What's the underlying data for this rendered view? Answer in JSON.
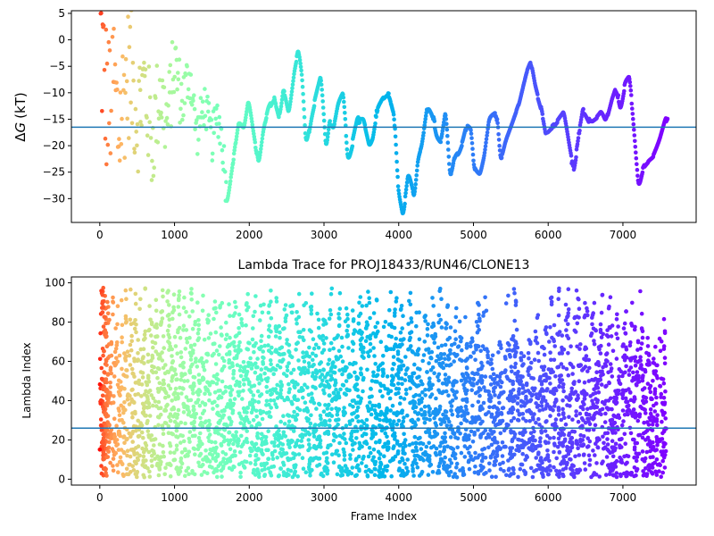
{
  "chart_data": [
    {
      "type": "scatter",
      "title": "",
      "xlabel": "",
      "ylabel": "ΔG (kT)",
      "ylabel_math_symbol": "Δ",
      "ylabel_math_var": "G",
      "ylabel_unit": "(kT)",
      "xlim": [
        -380,
        7980
      ],
      "ylim": [
        -34.5,
        5.5
      ],
      "xticks": [
        0,
        1000,
        2000,
        3000,
        4000,
        5000,
        6000,
        7000
      ],
      "yticks": [
        5,
        0,
        -5,
        -10,
        -15,
        -20,
        -25,
        -30
      ],
      "hline": -16.5,
      "hline_color": "#1f77b4",
      "colormap": "rainbow (frame index: red at start → violet at end)",
      "frame_count": 7600,
      "series_trace": [
        [
          0,
          2
        ],
        [
          60,
          -8
        ],
        [
          120,
          -14
        ],
        [
          180,
          -6
        ],
        [
          250,
          -18
        ],
        [
          320,
          -10
        ],
        [
          400,
          -5
        ],
        [
          500,
          -14
        ],
        [
          600,
          -8
        ],
        [
          700,
          -20
        ],
        [
          800,
          -9
        ],
        [
          900,
          -16
        ],
        [
          1000,
          -4
        ],
        [
          1100,
          -12
        ],
        [
          1200,
          -6
        ],
        [
          1300,
          -18
        ],
        [
          1400,
          -12
        ],
        [
          1500,
          -19
        ],
        [
          1580,
          -14
        ],
        [
          1650,
          -20
        ],
        [
          1700,
          -30
        ],
        [
          1780,
          -22
        ],
        [
          1850,
          -15
        ],
        [
          1920,
          -17
        ],
        [
          1980,
          -11
        ],
        [
          2050,
          -18
        ],
        [
          2120,
          -24
        ],
        [
          2180,
          -17
        ],
        [
          2250,
          -13
        ],
        [
          2330,
          -11
        ],
        [
          2400,
          -15
        ],
        [
          2450,
          -9
        ],
        [
          2520,
          -14
        ],
        [
          2600,
          -5
        ],
        [
          2650,
          -2
        ],
        [
          2700,
          -8
        ],
        [
          2750,
          -21
        ],
        [
          2830,
          -14
        ],
        [
          2880,
          -11
        ],
        [
          2950,
          -7
        ],
        [
          3020,
          -22
        ],
        [
          3070,
          -15
        ],
        [
          3120,
          -17
        ],
        [
          3180,
          -12
        ],
        [
          3250,
          -10
        ],
        [
          3310,
          -23
        ],
        [
          3380,
          -19
        ],
        [
          3440,
          -15
        ],
        [
          3520,
          -15
        ],
        [
          3600,
          -20
        ],
        [
          3650,
          -18
        ],
        [
          3700,
          -13
        ],
        [
          3780,
          -11
        ],
        [
          3860,
          -10
        ],
        [
          3930,
          -14
        ],
        [
          3980,
          -28
        ],
        [
          4050,
          -33
        ],
        [
          4120,
          -25
        ],
        [
          4200,
          -30
        ],
        [
          4250,
          -22
        ],
        [
          4300,
          -20
        ],
        [
          4380,
          -12
        ],
        [
          4440,
          -14
        ],
        [
          4500,
          -18
        ],
        [
          4560,
          -19
        ],
        [
          4620,
          -13
        ],
        [
          4680,
          -27
        ],
        [
          4740,
          -22
        ],
        [
          4800,
          -21
        ],
        [
          4850,
          -19
        ],
        [
          4900,
          -16
        ],
        [
          4960,
          -17
        ],
        [
          5000,
          -25
        ],
        [
          5080,
          -26
        ],
        [
          5140,
          -22
        ],
        [
          5200,
          -15
        ],
        [
          5300,
          -14
        ],
        [
          5360,
          -23
        ],
        [
          5420,
          -19
        ],
        [
          5500,
          -16
        ],
        [
          5600,
          -12
        ],
        [
          5700,
          -6
        ],
        [
          5760,
          -4
        ],
        [
          5820,
          -9
        ],
        [
          5900,
          -13
        ],
        [
          5960,
          -18
        ],
        [
          6020,
          -17
        ],
        [
          6100,
          -16
        ],
        [
          6200,
          -14
        ],
        [
          6280,
          -21
        ],
        [
          6330,
          -25
        ],
        [
          6400,
          -18
        ],
        [
          6460,
          -13
        ],
        [
          6560,
          -16
        ],
        [
          6650,
          -15
        ],
        [
          6700,
          -14
        ],
        [
          6760,
          -16
        ],
        [
          6850,
          -11
        ],
        [
          6900,
          -9
        ],
        [
          6960,
          -13
        ],
        [
          7020,
          -8
        ],
        [
          7080,
          -7
        ],
        [
          7140,
          -17
        ],
        [
          7200,
          -28
        ],
        [
          7260,
          -24
        ],
        [
          7320,
          -23
        ],
        [
          7400,
          -22
        ],
        [
          7480,
          -19
        ],
        [
          7560,
          -15
        ],
        [
          7600,
          -14
        ]
      ]
    },
    {
      "type": "scatter",
      "title": "Lambda Trace for PROJ18433/RUN46/CLONE13",
      "xlabel": "Frame Index",
      "ylabel": "Lambda Index",
      "xlim": [
        -380,
        7980
      ],
      "ylim": [
        -3,
        103
      ],
      "xticks": [
        0,
        1000,
        2000,
        3000,
        4000,
        5000,
        6000,
        7000
      ],
      "yticks": [
        0,
        20,
        40,
        60,
        80,
        100
      ],
      "hline": 26,
      "hline_color": "#1f77b4",
      "colormap": "rainbow (frame index: red at start → violet at end)",
      "frame_count": 7600,
      "lambda_range": [
        1,
        99
      ],
      "spike_tops": [
        [
          40,
          98
        ],
        [
          140,
          97
        ],
        [
          260,
          99
        ],
        [
          380,
          99
        ],
        [
          500,
          99
        ],
        [
          640,
          98
        ],
        [
          800,
          99
        ],
        [
          950,
          98
        ],
        [
          1100,
          99
        ],
        [
          1260,
          99
        ],
        [
          1420,
          98
        ],
        [
          1580,
          99
        ],
        [
          1760,
          99
        ],
        [
          1930,
          97
        ],
        [
          2120,
          99
        ],
        [
          2330,
          98
        ],
        [
          2520,
          99
        ],
        [
          2700,
          98
        ],
        [
          2880,
          96
        ],
        [
          3050,
          99
        ],
        [
          3260,
          98
        ],
        [
          3440,
          99
        ],
        [
          3640,
          96
        ],
        [
          3850,
          99
        ],
        [
          4000,
          97
        ],
        [
          4200,
          95
        ],
        [
          4420,
          99
        ],
        [
          4600,
          99
        ],
        [
          4860,
          85
        ],
        [
          5020,
          99
        ],
        [
          5200,
          74
        ],
        [
          5400,
          99
        ],
        [
          5600,
          73
        ],
        [
          5800,
          89
        ],
        [
          6000,
          99
        ],
        [
          6200,
          99
        ],
        [
          6450,
          95
        ],
        [
          6660,
          99
        ],
        [
          6880,
          90
        ],
        [
          7080,
          99
        ],
        [
          7280,
          72
        ],
        [
          7480,
          84
        ],
        [
          7580,
          80
        ]
      ]
    }
  ]
}
